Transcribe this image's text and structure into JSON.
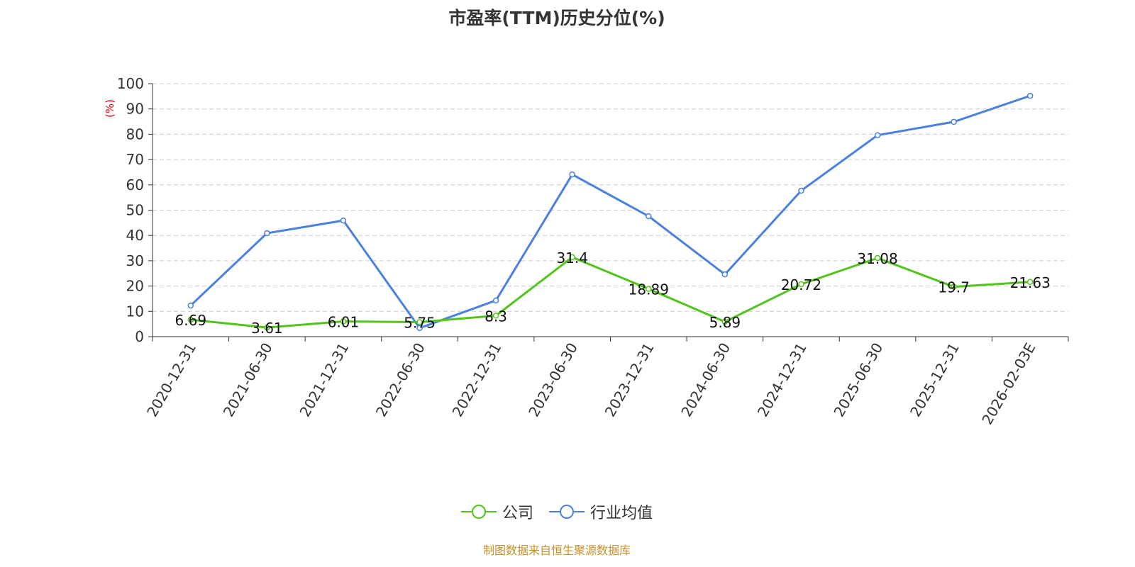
{
  "chart_data": {
    "type": "line",
    "title": "市盈率(TTM)历史分位(%)",
    "ylabel": "(%)",
    "xlabel": "",
    "ylim": [
      0,
      100
    ],
    "yticks": [
      0,
      10,
      20,
      30,
      40,
      50,
      60,
      70,
      80,
      90,
      100
    ],
    "grid": true,
    "legend_position": "bottom",
    "categories": [
      "2020-12-31",
      "2021-06-30",
      "2021-12-31",
      "2022-06-30",
      "2022-12-31",
      "2023-06-30",
      "2023-12-31",
      "2024-06-30",
      "2024-12-31",
      "2025-06-30",
      "2025-12-31",
      "2026-02-03E"
    ],
    "series": [
      {
        "name": "公司",
        "color": "#52c41a",
        "values": [
          6.69,
          3.61,
          6.01,
          5.75,
          8.3,
          31.4,
          18.89,
          5.89,
          20.72,
          31.08,
          19.7,
          21.63
        ],
        "labels": true
      },
      {
        "name": "行业均值",
        "color": "#4a80e0",
        "values": [
          12.3,
          40.9,
          45.9,
          3.4,
          14.3,
          64.1,
          47.6,
          24.6,
          57.7,
          79.6,
          84.9,
          95.2
        ],
        "labels": false
      }
    ]
  },
  "footer": "制图数据来自恒生聚源数据库"
}
